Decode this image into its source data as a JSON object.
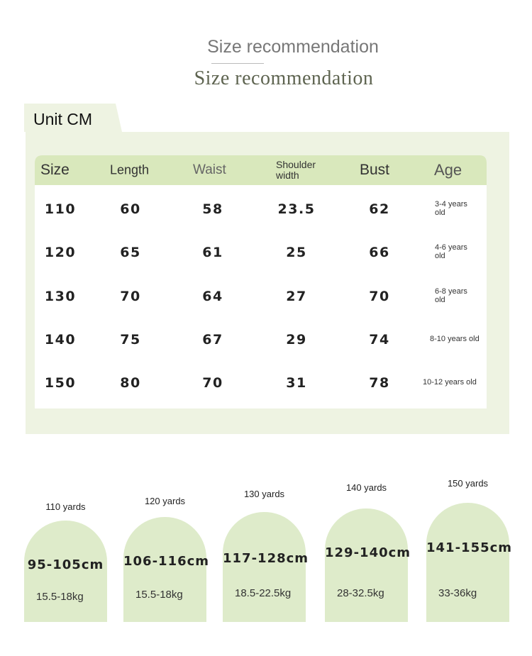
{
  "header": {
    "title": "Size recommendation",
    "subtitle": "Size recommendation"
  },
  "table": {
    "unit": "Unit CM",
    "columns": [
      "Size",
      "Length",
      "Waist",
      "Shoulder width",
      "Bust",
      "Age"
    ],
    "rows": [
      [
        110,
        60,
        58,
        23.5,
        62,
        "3-4 years old"
      ],
      [
        120,
        65,
        61,
        25,
        66,
        "4-6 years old"
      ],
      [
        130,
        70,
        64,
        27,
        70,
        "6-8 years old"
      ],
      [
        140,
        75,
        67,
        29,
        74,
        "8-10 years old"
      ],
      [
        150,
        80,
        70,
        31,
        78,
        "10-12 years old"
      ]
    ]
  },
  "recommendations": [
    {
      "label": "110 yards",
      "height": "95-105cm",
      "weight": "15.5-18kg"
    },
    {
      "label": "120 yards",
      "height": "106-116cm",
      "weight": "15.5-18kg"
    },
    {
      "label": "130 yards",
      "height": "117-128cm",
      "weight": "18.5-22.5kg"
    },
    {
      "label": "140 yards",
      "height": "129-140cm",
      "weight": "28-32.5kg"
    },
    {
      "label": "150 yards",
      "height": "141-155cm",
      "weight": "33-36kg"
    }
  ]
}
